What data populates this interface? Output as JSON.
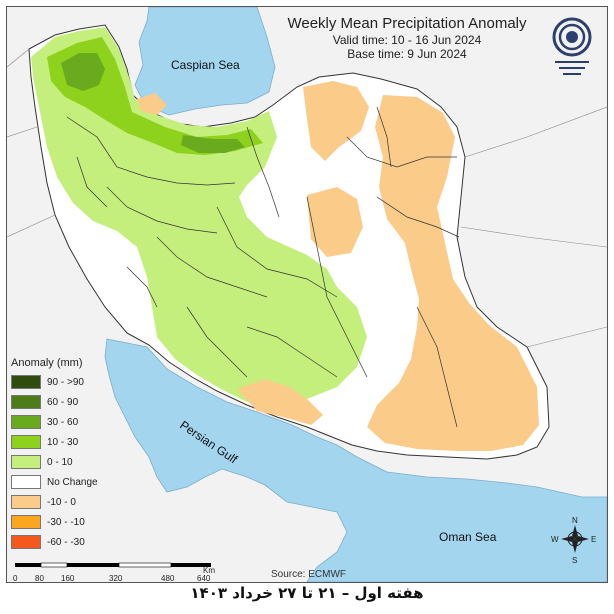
{
  "title": "Weekly Mean Precipitation Anomaly",
  "valid_time": "Valid time: 10 - 16 Jun 2024",
  "base_time": "Base time: 9 Jun 2024",
  "logo": {
    "name": "met-organization-logo"
  },
  "water_labels": {
    "caspian": "Caspian Sea",
    "persian_gulf": "Persian Gulf",
    "oman": "Oman Sea"
  },
  "legend": {
    "title": "Anomaly (mm)",
    "items": [
      {
        "label": "90 - >90",
        "color": "#2f4b0e"
      },
      {
        "label": "60 - 90",
        "color": "#4c7d1a"
      },
      {
        "label": "30 - 60",
        "color": "#6aaa1e"
      },
      {
        "label": "10 - 30",
        "color": "#8fd21d"
      },
      {
        "label": "0 - 10",
        "color": "#c5ef7c"
      },
      {
        "label": "No Change",
        "color": "#ffffff"
      },
      {
        "label": "-10 - 0",
        "color": "#fbcb8a"
      },
      {
        "label": "-30 - -10",
        "color": "#fca51f"
      },
      {
        "label": "-60 - -30",
        "color": "#f5581c"
      }
    ]
  },
  "scale": {
    "unit": "Km",
    "ticks": [
      "0",
      "80",
      "160",
      "320",
      "480",
      "640"
    ]
  },
  "source": "Source: ECMWF",
  "compass": {
    "n": "N",
    "e": "E",
    "s": "S",
    "w": "W"
  },
  "footer": "هفته اول – ۲۱ تا ۲۷ خرداد ۱۴۰۳",
  "colors": {
    "water": "#a3d5ef",
    "land_outside": "#f2f2f2",
    "border": "#333333"
  }
}
